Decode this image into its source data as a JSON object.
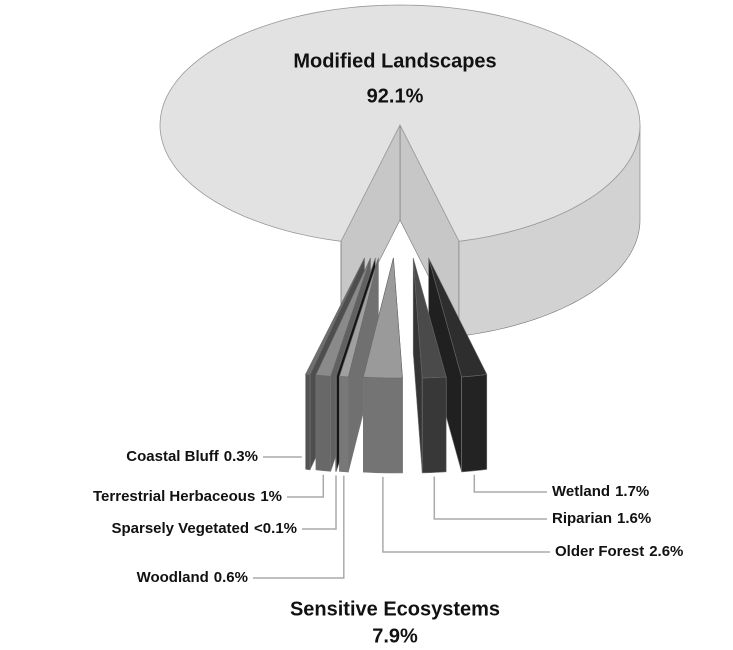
{
  "chart_data": {
    "type": "pie3d",
    "categories": [
      "Modified Landscapes",
      "Sensitive Ecosystems"
    ],
    "values": [
      92.1,
      7.9
    ],
    "value_labels": [
      "92.1%",
      "7.9%"
    ],
    "color": "#e2e2e2",
    "breakdown": {
      "categories": [
        "Coastal Bluff",
        "Terrestrial Herbaceous",
        "Sparsely Vegetated",
        "Woodland",
        "Older Forest",
        "Riparian",
        "Wetland"
      ],
      "values": [
        0.3,
        1,
        0.05,
        0.6,
        2.6,
        1.6,
        1.7
      ],
      "value_labels": [
        "0.3%",
        "1%",
        "<0.1%",
        "0.6%",
        "2.6%",
        "1.6%",
        "1.7%"
      ],
      "colors": [
        "#6f6f6f",
        "#8a8a8a",
        "#1e1e1e",
        "#a0a0a0",
        "#9a9a9a",
        "#4a4a4a",
        "#2e2e2e"
      ]
    }
  }
}
